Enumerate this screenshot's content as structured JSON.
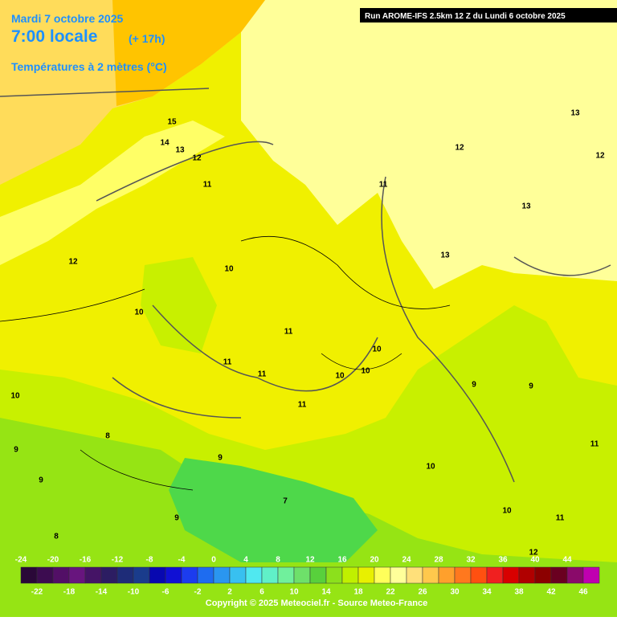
{
  "header": {
    "date": "Mardi 7 octobre 2025",
    "time": "7:00 locale",
    "lead": "(+ 17h)",
    "variable": "Températures à 2 mètres (°C)"
  },
  "run": "Run AROME-IFS 2.5km 12 Z du Lundi 6 octobre 2025",
  "copyright": "Copyright © 2025 Meteociel.fr - Source Meteo-France",
  "contour_labels": [
    15,
    14,
    13,
    12,
    11,
    12,
    10,
    10,
    11,
    11,
    11,
    10,
    10,
    10,
    11,
    10,
    8,
    9,
    9,
    7,
    9,
    8,
    13,
    12,
    11,
    13,
    12,
    13,
    9,
    9,
    11,
    10,
    11,
    12,
    10,
    9
  ],
  "legend": {
    "top_labels": [
      -24,
      -20,
      -16,
      -12,
      -8,
      -4,
      0,
      4,
      8,
      12,
      16,
      20,
      24,
      28,
      32,
      36,
      40,
      44
    ],
    "bottom_labels": [
      -22,
      -18,
      -14,
      -10,
      -6,
      -2,
      2,
      6,
      10,
      14,
      18,
      22,
      26,
      30,
      34,
      38,
      42,
      46
    ],
    "colors": [
      "#2a0838",
      "#3c0c50",
      "#520f66",
      "#68157e",
      "#451466",
      "#2c1d62",
      "#1e2c78",
      "#1a3c8c",
      "#0808b0",
      "#1010d4",
      "#1c3cee",
      "#1e6cf0",
      "#2a96f0",
      "#38c0f0",
      "#50e8f0",
      "#60f0c8",
      "#70f09c",
      "#6ee06a",
      "#58d03c",
      "#8ce01c",
      "#c0f000",
      "#e8f000",
      "#ffff5a",
      "#ffff9a",
      "#ffe07a",
      "#ffc84c",
      "#ffa02c",
      "#ff781e",
      "#ff5010",
      "#f02020",
      "#d80000",
      "#b00000",
      "#8c0000",
      "#6a0020",
      "#8a0a6a",
      "#c000b0"
    ]
  }
}
